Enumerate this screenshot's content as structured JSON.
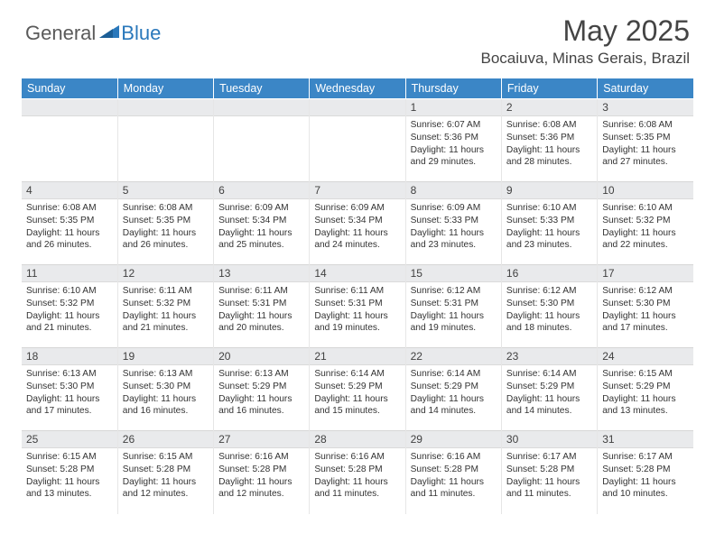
{
  "brand": {
    "part1": "General",
    "part2": "Blue"
  },
  "title": "May 2025",
  "location": "Bocaiuva, Minas Gerais, Brazil",
  "weekdays": [
    "Sunday",
    "Monday",
    "Tuesday",
    "Wednesday",
    "Thursday",
    "Friday",
    "Saturday"
  ],
  "colors": {
    "header_bg": "#3b86c6",
    "header_text": "#ffffff",
    "daynum_bg": "#e9eaec",
    "logo_gray": "#5a5a5a",
    "logo_blue": "#2a78bb"
  },
  "weeks": [
    [
      {
        "n": "",
        "sunrise": "",
        "sunset": "",
        "daylight": ""
      },
      {
        "n": "",
        "sunrise": "",
        "sunset": "",
        "daylight": ""
      },
      {
        "n": "",
        "sunrise": "",
        "sunset": "",
        "daylight": ""
      },
      {
        "n": "",
        "sunrise": "",
        "sunset": "",
        "daylight": ""
      },
      {
        "n": "1",
        "sunrise": "Sunrise: 6:07 AM",
        "sunset": "Sunset: 5:36 PM",
        "daylight": "Daylight: 11 hours and 29 minutes."
      },
      {
        "n": "2",
        "sunrise": "Sunrise: 6:08 AM",
        "sunset": "Sunset: 5:36 PM",
        "daylight": "Daylight: 11 hours and 28 minutes."
      },
      {
        "n": "3",
        "sunrise": "Sunrise: 6:08 AM",
        "sunset": "Sunset: 5:35 PM",
        "daylight": "Daylight: 11 hours and 27 minutes."
      }
    ],
    [
      {
        "n": "4",
        "sunrise": "Sunrise: 6:08 AM",
        "sunset": "Sunset: 5:35 PM",
        "daylight": "Daylight: 11 hours and 26 minutes."
      },
      {
        "n": "5",
        "sunrise": "Sunrise: 6:08 AM",
        "sunset": "Sunset: 5:35 PM",
        "daylight": "Daylight: 11 hours and 26 minutes."
      },
      {
        "n": "6",
        "sunrise": "Sunrise: 6:09 AM",
        "sunset": "Sunset: 5:34 PM",
        "daylight": "Daylight: 11 hours and 25 minutes."
      },
      {
        "n": "7",
        "sunrise": "Sunrise: 6:09 AM",
        "sunset": "Sunset: 5:34 PM",
        "daylight": "Daylight: 11 hours and 24 minutes."
      },
      {
        "n": "8",
        "sunrise": "Sunrise: 6:09 AM",
        "sunset": "Sunset: 5:33 PM",
        "daylight": "Daylight: 11 hours and 23 minutes."
      },
      {
        "n": "9",
        "sunrise": "Sunrise: 6:10 AM",
        "sunset": "Sunset: 5:33 PM",
        "daylight": "Daylight: 11 hours and 23 minutes."
      },
      {
        "n": "10",
        "sunrise": "Sunrise: 6:10 AM",
        "sunset": "Sunset: 5:32 PM",
        "daylight": "Daylight: 11 hours and 22 minutes."
      }
    ],
    [
      {
        "n": "11",
        "sunrise": "Sunrise: 6:10 AM",
        "sunset": "Sunset: 5:32 PM",
        "daylight": "Daylight: 11 hours and 21 minutes."
      },
      {
        "n": "12",
        "sunrise": "Sunrise: 6:11 AM",
        "sunset": "Sunset: 5:32 PM",
        "daylight": "Daylight: 11 hours and 21 minutes."
      },
      {
        "n": "13",
        "sunrise": "Sunrise: 6:11 AM",
        "sunset": "Sunset: 5:31 PM",
        "daylight": "Daylight: 11 hours and 20 minutes."
      },
      {
        "n": "14",
        "sunrise": "Sunrise: 6:11 AM",
        "sunset": "Sunset: 5:31 PM",
        "daylight": "Daylight: 11 hours and 19 minutes."
      },
      {
        "n": "15",
        "sunrise": "Sunrise: 6:12 AM",
        "sunset": "Sunset: 5:31 PM",
        "daylight": "Daylight: 11 hours and 19 minutes."
      },
      {
        "n": "16",
        "sunrise": "Sunrise: 6:12 AM",
        "sunset": "Sunset: 5:30 PM",
        "daylight": "Daylight: 11 hours and 18 minutes."
      },
      {
        "n": "17",
        "sunrise": "Sunrise: 6:12 AM",
        "sunset": "Sunset: 5:30 PM",
        "daylight": "Daylight: 11 hours and 17 minutes."
      }
    ],
    [
      {
        "n": "18",
        "sunrise": "Sunrise: 6:13 AM",
        "sunset": "Sunset: 5:30 PM",
        "daylight": "Daylight: 11 hours and 17 minutes."
      },
      {
        "n": "19",
        "sunrise": "Sunrise: 6:13 AM",
        "sunset": "Sunset: 5:30 PM",
        "daylight": "Daylight: 11 hours and 16 minutes."
      },
      {
        "n": "20",
        "sunrise": "Sunrise: 6:13 AM",
        "sunset": "Sunset: 5:29 PM",
        "daylight": "Daylight: 11 hours and 16 minutes."
      },
      {
        "n": "21",
        "sunrise": "Sunrise: 6:14 AM",
        "sunset": "Sunset: 5:29 PM",
        "daylight": "Daylight: 11 hours and 15 minutes."
      },
      {
        "n": "22",
        "sunrise": "Sunrise: 6:14 AM",
        "sunset": "Sunset: 5:29 PM",
        "daylight": "Daylight: 11 hours and 14 minutes."
      },
      {
        "n": "23",
        "sunrise": "Sunrise: 6:14 AM",
        "sunset": "Sunset: 5:29 PM",
        "daylight": "Daylight: 11 hours and 14 minutes."
      },
      {
        "n": "24",
        "sunrise": "Sunrise: 6:15 AM",
        "sunset": "Sunset: 5:29 PM",
        "daylight": "Daylight: 11 hours and 13 minutes."
      }
    ],
    [
      {
        "n": "25",
        "sunrise": "Sunrise: 6:15 AM",
        "sunset": "Sunset: 5:28 PM",
        "daylight": "Daylight: 11 hours and 13 minutes."
      },
      {
        "n": "26",
        "sunrise": "Sunrise: 6:15 AM",
        "sunset": "Sunset: 5:28 PM",
        "daylight": "Daylight: 11 hours and 12 minutes."
      },
      {
        "n": "27",
        "sunrise": "Sunrise: 6:16 AM",
        "sunset": "Sunset: 5:28 PM",
        "daylight": "Daylight: 11 hours and 12 minutes."
      },
      {
        "n": "28",
        "sunrise": "Sunrise: 6:16 AM",
        "sunset": "Sunset: 5:28 PM",
        "daylight": "Daylight: 11 hours and 11 minutes."
      },
      {
        "n": "29",
        "sunrise": "Sunrise: 6:16 AM",
        "sunset": "Sunset: 5:28 PM",
        "daylight": "Daylight: 11 hours and 11 minutes."
      },
      {
        "n": "30",
        "sunrise": "Sunrise: 6:17 AM",
        "sunset": "Sunset: 5:28 PM",
        "daylight": "Daylight: 11 hours and 11 minutes."
      },
      {
        "n": "31",
        "sunrise": "Sunrise: 6:17 AM",
        "sunset": "Sunset: 5:28 PM",
        "daylight": "Daylight: 11 hours and 10 minutes."
      }
    ]
  ]
}
